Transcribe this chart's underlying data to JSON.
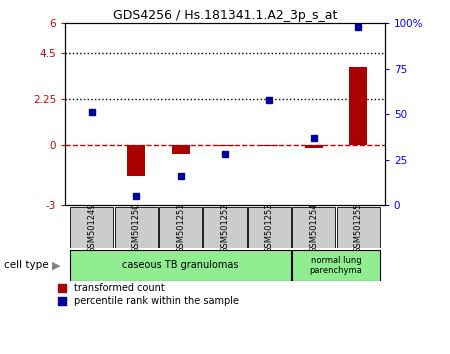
{
  "title": "GDS4256 / Hs.181341.1.A2_3p_s_at",
  "samples": [
    "GSM501249",
    "GSM501250",
    "GSM501251",
    "GSM501252",
    "GSM501253",
    "GSM501254",
    "GSM501255"
  ],
  "red_values": [
    0.0,
    -1.55,
    -0.45,
    -0.05,
    -0.05,
    -0.18,
    3.85
  ],
  "blue_values": [
    51,
    5,
    16,
    28,
    58,
    37,
    98
  ],
  "ylim_left": [
    -3,
    6
  ],
  "ylim_right": [
    0,
    100
  ],
  "yticks_left": [
    -3,
    0,
    2.25,
    4.5,
    6
  ],
  "yticks_right": [
    0,
    25,
    50,
    75,
    100
  ],
  "ytick_labels_left": [
    "-3",
    "0",
    "2.25",
    "4.5",
    "6"
  ],
  "ytick_labels_right": [
    "0",
    "25",
    "50",
    "75",
    "100%"
  ],
  "hlines": [
    0.0,
    2.25,
    4.5
  ],
  "hline_styles": [
    "dashed",
    "dotted",
    "dotted"
  ],
  "hline_colors": [
    "#cc0000",
    "black",
    "black"
  ],
  "red_color": "#aa0000",
  "blue_color": "#000099",
  "legend_red": "transformed count",
  "legend_blue": "percentile rank within the sample",
  "cell_type_label": "cell type",
  "group1_label": "caseous TB granulomas",
  "group2_label": "normal lung\nparenchyma",
  "group_color": "#90EE90",
  "label_box_color": "#cccccc",
  "fig_bg": "#ffffff"
}
